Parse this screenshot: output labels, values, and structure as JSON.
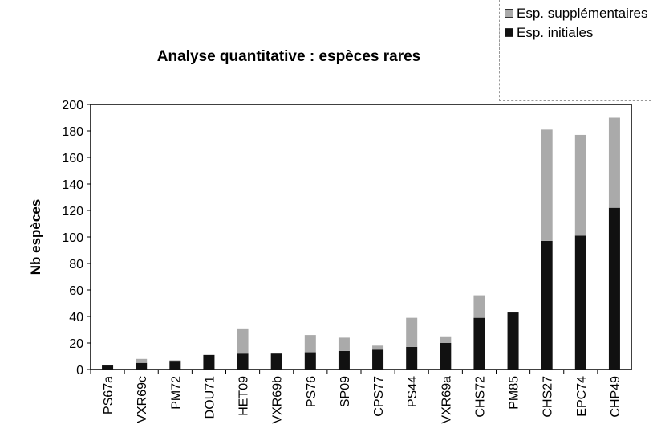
{
  "chart_data": {
    "type": "stacked_bar",
    "title": "Analyse quantitative : espèces rares",
    "y_label": "Nb espèces",
    "categories": [
      "PS67a",
      "VXR69c",
      "PM72",
      "DOU71",
      "HET09",
      "VXR69b",
      "PS76",
      "SP09",
      "CPS77",
      "PS44",
      "VXR69a",
      "CHS72",
      "PM85",
      "CHS27",
      "EPC74",
      "CHP49"
    ],
    "series": [
      {
        "name": "Esp. initiales",
        "color": "#111111",
        "values": [
          3,
          5,
          6,
          11,
          12,
          12,
          13,
          14,
          15,
          17,
          20,
          39,
          43,
          97,
          101,
          122
        ]
      },
      {
        "name": "Esp. supplémentaires",
        "color": "#aaaaaa",
        "values": [
          0,
          3,
          1,
          0,
          19,
          0,
          13,
          10,
          3,
          22,
          5,
          17,
          0,
          84,
          76,
          68
        ]
      }
    ],
    "ylim": [
      0,
      200
    ],
    "yticks": [
      0,
      20,
      40,
      60,
      80,
      100,
      120,
      140,
      160,
      180,
      200
    ],
    "grid": false,
    "legend": "top-right"
  }
}
